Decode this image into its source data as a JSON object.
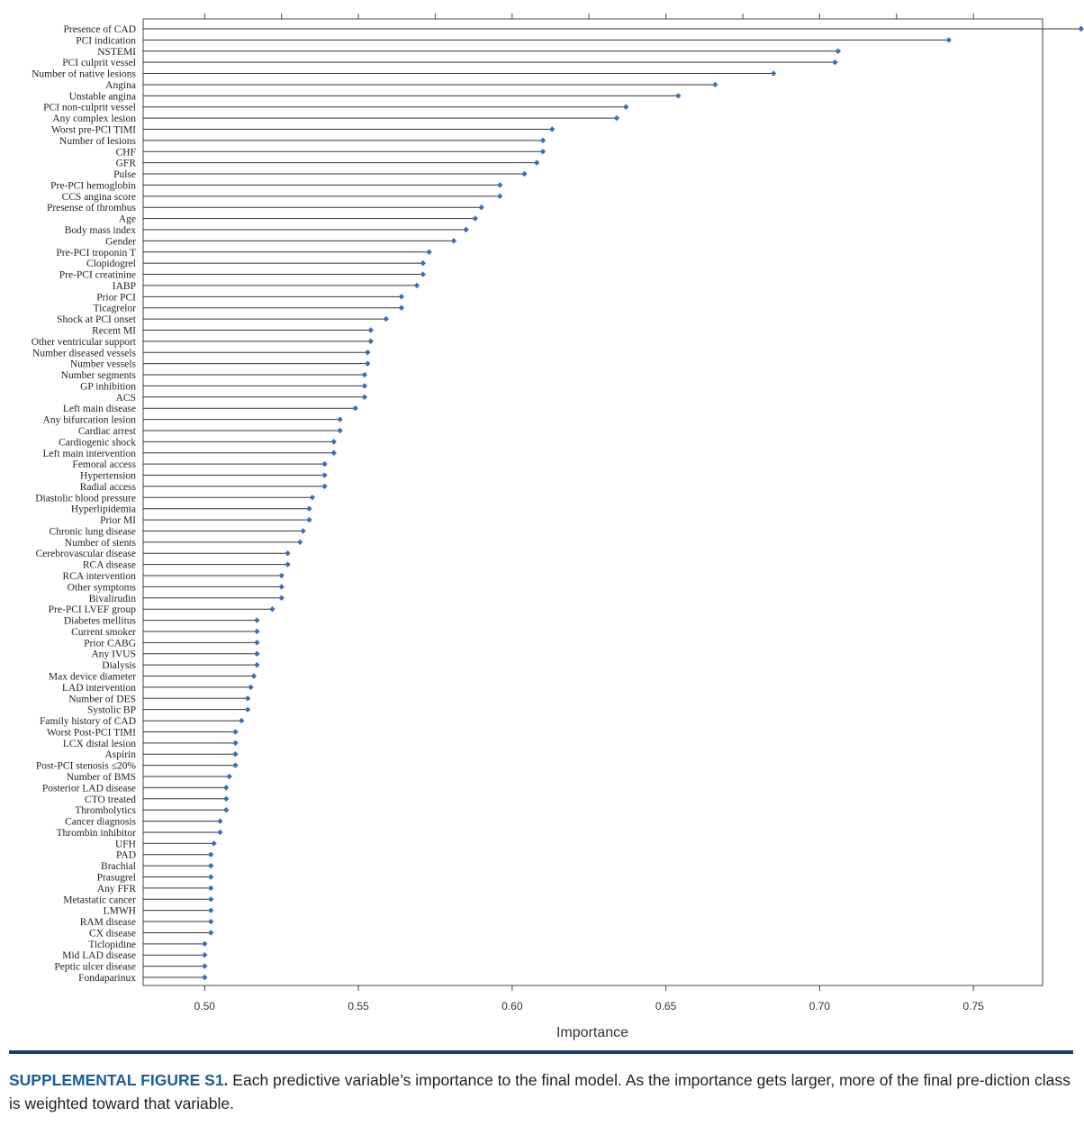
{
  "chart_data": {
    "type": "scatter",
    "style": "lollipop",
    "title": "",
    "xlabel": "Importance",
    "ylabel": "",
    "xlim": [
      0.48,
      0.7725
    ],
    "xticks": [
      0.5,
      0.55,
      0.6,
      0.65,
      0.7,
      0.75
    ],
    "xtick_labels": [
      "0.50",
      "0.55",
      "0.60",
      "0.65",
      "0.70",
      "0.75"
    ],
    "grid": false,
    "marker_color": "#3d6fb0",
    "categories": [
      "Presence of CAD",
      "PCI indication",
      "NSTEMI",
      "PCI culprit vessel",
      "Number of native lesions",
      "Angina",
      "Unstable angina",
      "PCI non-culprit vessel",
      "Any complex lesion",
      "Worst pre-PCI TIMI",
      "Number of lesions",
      "CHF",
      "GFR",
      "Pulse",
      "Pre-PCI hemoglobin",
      "CCS angina score",
      "Presense of thrombus",
      "Age",
      "Body mass index",
      "Gender",
      "Pre-PCI troponin T",
      "Clopidogrel",
      "Pre-PCI creatinine",
      "IABP",
      "Prior PCI",
      "Ticagrelor",
      "Shock at PCI onset",
      "Recent MI",
      "Other ventricular support",
      "Number diseased vessels",
      "Number vessels",
      "Number segments",
      "GP inhibition",
      "ACS",
      "Left main disease",
      "Any bifurcation lesion",
      "Cardiac arrest",
      "Cardiogenic shock",
      "Left main intervention",
      "Femoral access",
      "Hypertension",
      "Radial access",
      "Diastolic blood pressure",
      "Hyperlipidemia",
      "Prior MI",
      "Chronic lung disease",
      "Number of stents",
      "Cerebrovascular disease",
      "RCA disease",
      "RCA intervention",
      "Other symptoms",
      "Bivalirudin",
      "Pre-PCI LVEF group",
      "Diabetes mellitus",
      "Current smoker",
      "Prior CABG",
      "Any IVUS",
      "Dialysis",
      "Max device diameter",
      "LAD intervention",
      "Number of DES",
      "Systolic BP",
      "Family history of CAD",
      "Worst Post-PCI TIMI",
      "LCX distal lesion",
      "Aspirin",
      "Post-PCI stenosis ≤20%",
      "Number of BMS",
      "Posterior LAD disease",
      "CTO treated",
      "Thrombolytics",
      "Cancer diagnosis",
      "Thrombin inhibitor",
      "UFH",
      "PAD",
      "Brachial",
      "Prasugrel",
      "Any FFR",
      "Metastatic cancer",
      "LMWH",
      "RAM disease",
      "CX disease",
      "Ticlopidine",
      "Mid LAD disease",
      "Peptic ulcer disease",
      "Fondaparinux"
    ],
    "values": [
      0.785,
      0.742,
      0.706,
      0.705,
      0.685,
      0.666,
      0.654,
      0.637,
      0.634,
      0.613,
      0.61,
      0.61,
      0.608,
      0.604,
      0.596,
      0.596,
      0.59,
      0.588,
      0.585,
      0.581,
      0.573,
      0.571,
      0.571,
      0.569,
      0.564,
      0.564,
      0.559,
      0.554,
      0.554,
      0.553,
      0.553,
      0.552,
      0.552,
      0.552,
      0.549,
      0.544,
      0.544,
      0.542,
      0.542,
      0.539,
      0.539,
      0.539,
      0.535,
      0.534,
      0.534,
      0.532,
      0.531,
      0.527,
      0.527,
      0.525,
      0.525,
      0.525,
      0.522,
      0.517,
      0.517,
      0.517,
      0.517,
      0.517,
      0.516,
      0.515,
      0.514,
      0.514,
      0.512,
      0.51,
      0.51,
      0.51,
      0.51,
      0.508,
      0.507,
      0.507,
      0.507,
      0.505,
      0.505,
      0.503,
      0.502,
      0.502,
      0.502,
      0.502,
      0.502,
      0.502,
      0.502,
      0.502,
      0.5,
      0.5,
      0.5,
      0.5
    ]
  },
  "caption": {
    "title": "SUPPLEMENTAL FIGURE S1.",
    "text": " Each predictive variable’s importance to the final model. As the importance gets larger, more of the final pre-diction class is weighted toward that variable."
  }
}
